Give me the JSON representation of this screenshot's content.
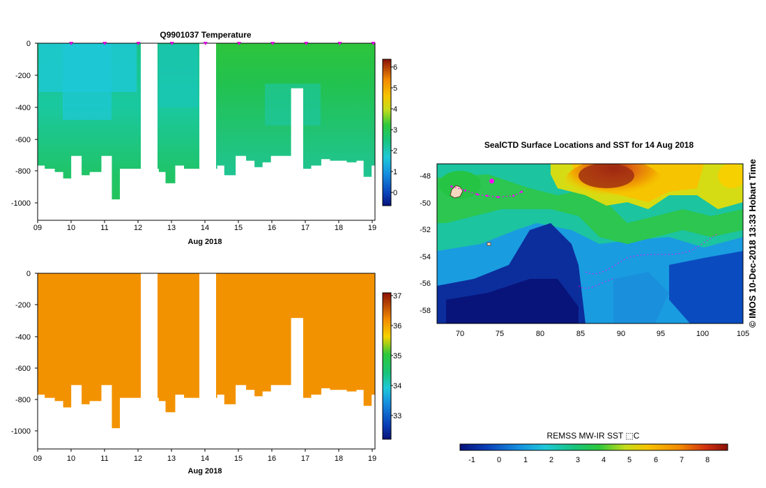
{
  "temperature_panel": {
    "title": "Q9901037  Temperature",
    "xlabel": "Aug 2018",
    "x_ticks": [
      "09",
      "10",
      "11",
      "12",
      "13",
      "14",
      "15",
      "16",
      "17",
      "18",
      "19"
    ],
    "y_ticks": [
      "0",
      "-200",
      "-400",
      "-600",
      "-800",
      "-1000"
    ],
    "colorbar_ticks": [
      "0",
      "1",
      "2",
      "3",
      "4",
      "5",
      "6"
    ]
  },
  "salinity_panel": {
    "xlabel": "Aug 2018",
    "x_ticks": [
      "09",
      "10",
      "11",
      "12",
      "13",
      "14",
      "15",
      "16",
      "17",
      "18",
      "19"
    ],
    "y_ticks": [
      "0",
      "-200",
      "-400",
      "-600",
      "-800",
      "-1000"
    ],
    "colorbar_ticks": [
      "33",
      "34",
      "35",
      "36",
      "37"
    ]
  },
  "map_panel": {
    "title": "SealCTD Surface Locations and SST for 14 Aug 2018",
    "side_label": "© IMOS 10-Dec-2018 13:33 Hobart Time",
    "x_ticks": [
      "70",
      "75",
      "80",
      "85",
      "90",
      "95",
      "100",
      "105"
    ],
    "y_ticks": [
      "-48",
      "-50",
      "-52",
      "-54",
      "-56",
      "-58"
    ],
    "colorbar_title": "REMSS MW-IR SST ⬚C",
    "colorbar_ticks": [
      "-1",
      "0",
      "1",
      "2",
      "3",
      "4",
      "5",
      "6",
      "7",
      "8"
    ]
  },
  "colors": {
    "salinity_fill": "#f39200",
    "track_magenta": "#ff00ff",
    "profile_marker": "#e000e0"
  },
  "chart_data": [
    {
      "type": "heatmap",
      "title": "Q9901037  Temperature",
      "xlabel": "Aug 2018",
      "ylabel": "",
      "xlim": [
        9,
        19.05
      ],
      "ylim": [
        -1100,
        0
      ],
      "colorbar_range": [
        -0.5,
        6.5
      ],
      "gaps_days": [
        [
          12.05,
          12.6
        ],
        [
          13.8,
          14.35
        ]
      ],
      "profile_bottom_depths": [
        {
          "day": 9.0,
          "depth": -760
        },
        {
          "day": 9.2,
          "depth": -780
        },
        {
          "day": 9.5,
          "depth": -800
        },
        {
          "day": 9.75,
          "depth": -840
        },
        {
          "day": 10.0,
          "depth": -700
        },
        {
          "day": 10.3,
          "depth": -820
        },
        {
          "day": 10.55,
          "depth": -800
        },
        {
          "day": 10.9,
          "depth": -700
        },
        {
          "day": 11.2,
          "depth": -970
        },
        {
          "day": 11.45,
          "depth": -780
        },
        {
          "day": 12.6,
          "depth": -800
        },
        {
          "day": 12.8,
          "depth": -870
        },
        {
          "day": 13.1,
          "depth": -760
        },
        {
          "day": 13.35,
          "depth": -780
        },
        {
          "day": 14.35,
          "depth": -760
        },
        {
          "day": 14.55,
          "depth": -820
        },
        {
          "day": 14.9,
          "depth": -700
        },
        {
          "day": 15.2,
          "depth": -730
        },
        {
          "day": 15.45,
          "depth": -770
        },
        {
          "day": 15.7,
          "depth": -740
        },
        {
          "day": 15.95,
          "depth": -700
        },
        {
          "day": 16.55,
          "depth": -280
        },
        {
          "day": 16.9,
          "depth": -780
        },
        {
          "day": 17.15,
          "depth": -760
        },
        {
          "day": 17.45,
          "depth": -720
        },
        {
          "day": 17.7,
          "depth": -730
        },
        {
          "day": 18.2,
          "depth": -740
        },
        {
          "day": 18.5,
          "depth": -730
        },
        {
          "day": 18.7,
          "depth": -830
        },
        {
          "day": 18.95,
          "depth": -760
        }
      ],
      "profile_marker_days": [
        10.0,
        11.0,
        12.0,
        13.0,
        14.0,
        15.0,
        16.0,
        17.0,
        18.0,
        19.0
      ]
    },
    {
      "type": "heatmap",
      "title": "",
      "xlabel": "Aug 2018",
      "ylabel": "",
      "xlim": [
        9,
        19.05
      ],
      "ylim": [
        -1100,
        0
      ],
      "colorbar_range": [
        32.2,
        37.2
      ],
      "uniform_value": 35.9
    },
    {
      "type": "heatmap",
      "title": "SealCTD Surface Locations and SST for 14 Aug 2018",
      "xlabel": "",
      "ylabel": "",
      "xlim": [
        67,
        105
      ],
      "ylim": [
        -59.2,
        -47.2
      ],
      "colorbar_range": [
        -1.5,
        8.8
      ],
      "track": [
        {
          "lon": 68.8,
          "lat": -48.9
        },
        {
          "lon": 70.5,
          "lat": -49.2
        },
        {
          "lon": 72.0,
          "lat": -49.5
        },
        {
          "lon": 73.2,
          "lat": -49.6
        },
        {
          "lon": 74.6,
          "lat": -49.7
        },
        {
          "lon": 76.5,
          "lat": -49.6
        },
        {
          "lon": 77.5,
          "lat": -49.3
        }
      ],
      "latest_position": {
        "lon": 73.8,
        "lat": -48.5
      }
    }
  ]
}
